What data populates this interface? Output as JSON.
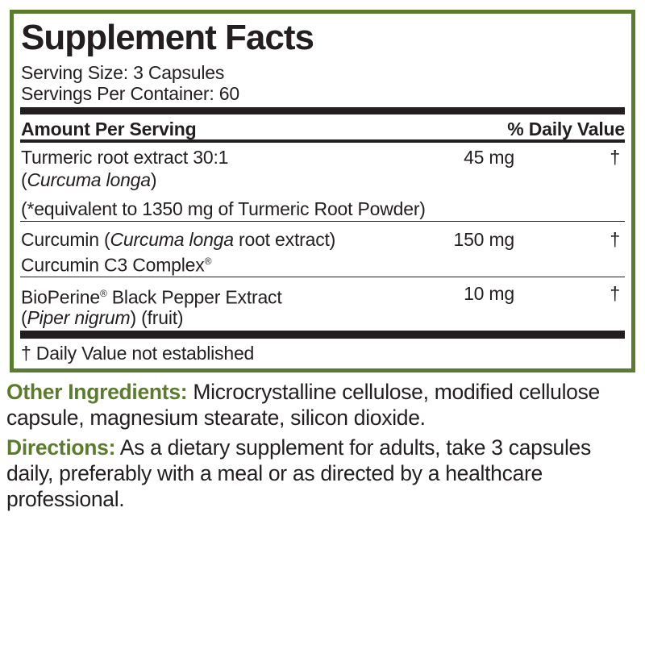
{
  "title": "Supplement Facts",
  "serving_size": "Serving Size: 3 Capsules",
  "servings_per_container": "Servings Per Container: 60",
  "header": {
    "amount": "Amount Per Serving",
    "daily_value": "% Daily Value"
  },
  "rows": [
    {
      "name": "Turmeric root extract 30:1",
      "sub_open": "(",
      "sub_italic": "Curcuma longa",
      "sub_close": ")",
      "note": "(*equivalent to 1350 mg of Turmeric Root Powder)",
      "amount": "45 mg",
      "dv": "†"
    },
    {
      "name_pre": "Curcumin (",
      "name_italic": "Curcuma longa",
      "name_post": " root extract)",
      "sub": "Curcumin C3 Complex",
      "sub_mark": "®",
      "amount": "150 mg",
      "dv": "†"
    },
    {
      "name_pre": "BioPerine",
      "name_mark": "®",
      "name_post": " Black Pepper Extract",
      "sub_open": "(",
      "sub_italic": "Piper nigrum",
      "sub_close": ") (fruit)",
      "amount": "10 mg",
      "dv": "†"
    }
  ],
  "footnote": "† Daily Value not established",
  "other_ingredients": {
    "label": "Other Ingredients:",
    "text": " Microcrystalline cellulose, modified cellulose capsule, magnesium stearate, silicon dioxide."
  },
  "directions": {
    "label": "Directions:",
    "text": " As a dietary supplement for adults, take 3 capsules daily, preferably with a meal or as directed by a healthcare professional."
  },
  "colors": {
    "border": "#5b7b2d",
    "accent_text": "#5b7b2d",
    "text": "#231f20"
  }
}
